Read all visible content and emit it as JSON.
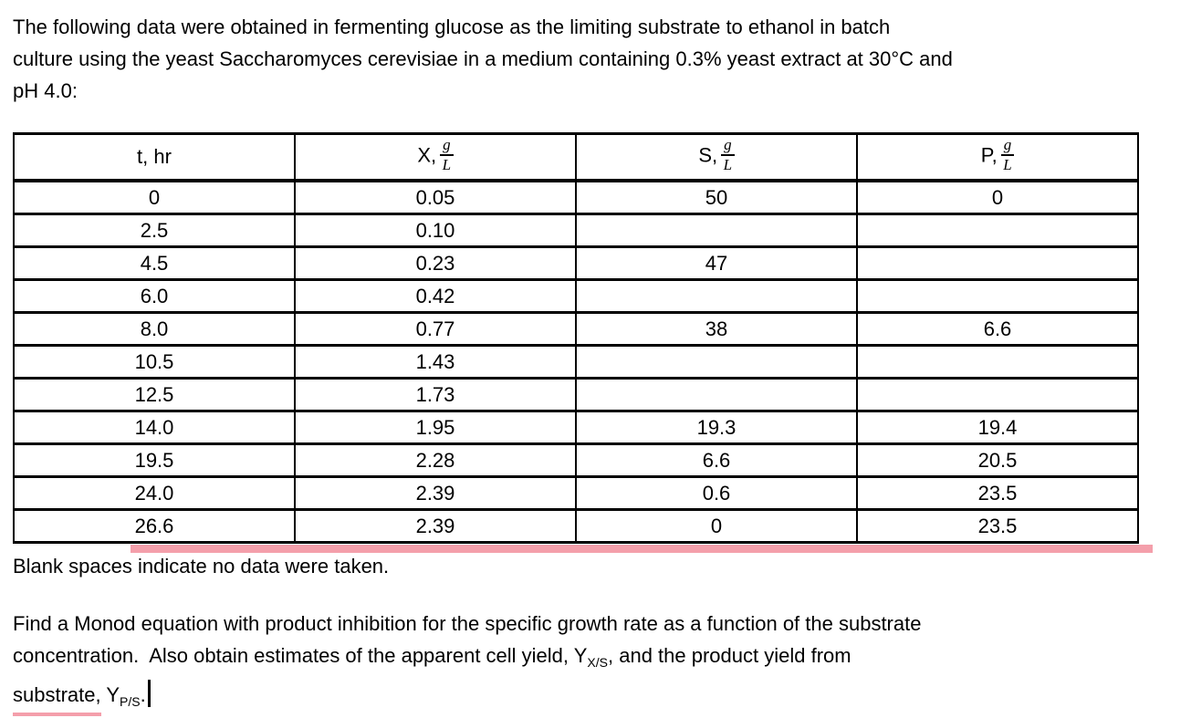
{
  "intro": {
    "line1": "The following data were obtained in fermenting glucose as the limiting substrate to ethanol in batch",
    "line2": "culture using the yeast Saccharomyces cerevisiae in a medium containing 0.3% yeast extract at 30°C and",
    "line3": "pH 4.0:"
  },
  "table": {
    "headers": [
      {
        "label": "t, hr"
      },
      {
        "prefix": "X,",
        "num": "g",
        "den": "L"
      },
      {
        "prefix": "S,",
        "num": "g",
        "den": "L"
      },
      {
        "prefix": "P,",
        "num": "g",
        "den": "L"
      }
    ],
    "rows": [
      [
        "0",
        "0.05",
        "50",
        "0"
      ],
      [
        "2.5",
        "0.10",
        "",
        ""
      ],
      [
        "4.5",
        "0.23",
        "47",
        ""
      ],
      [
        "6.0",
        "0.42",
        "",
        ""
      ],
      [
        "8.0",
        "0.77",
        "38",
        "6.6"
      ],
      [
        "10.5",
        "1.43",
        "",
        ""
      ],
      [
        "12.5",
        "1.73",
        "",
        ""
      ],
      [
        "14.0",
        "1.95",
        "19.3",
        "19.4"
      ],
      [
        "19.5",
        "2.28",
        "6.6",
        "20.5"
      ],
      [
        "24.0",
        "2.39",
        "0.6",
        "23.5"
      ],
      [
        "26.6",
        "2.39",
        "0",
        "23.5"
      ]
    ]
  },
  "note": "Blank spaces indicate no data were taken.",
  "question": {
    "line1": "Find a Monod equation with product inhibition for the specific growth rate as a function of the substrate",
    "line2_pre": "concentration.  Also obtain estimates of the apparent cell yield, Y",
    "line2_sub": "X/S",
    "line2_post": ", and the product yield from",
    "line3_word": "substrate,",
    "line3_mid": " Y",
    "line3_sub": "P/S",
    "line3_end": "."
  },
  "colors": {
    "highlight_pink": "#f49fab",
    "text": "#000000"
  }
}
